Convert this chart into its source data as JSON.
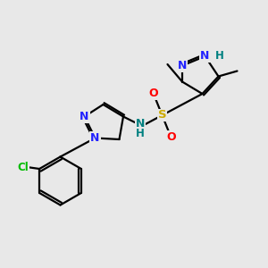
{
  "bg": "#e8e8e8",
  "C": "#000000",
  "N": "#2222ff",
  "O": "#ff0000",
  "S": "#ccaa00",
  "NH": "#008080",
  "Cl": "#00bb00",
  "lw": 1.6,
  "off": 0.055
}
